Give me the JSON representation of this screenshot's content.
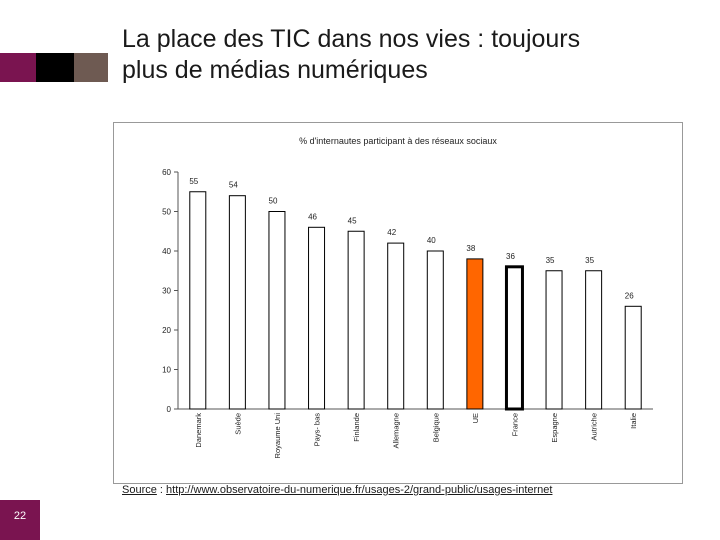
{
  "slide": {
    "title_line1": "La place des TIC dans nos vies : toujours",
    "title_line2": "plus de médias numériques",
    "source_label": "Source",
    "source_sep": " : ",
    "source_url": "http://www.observatoire-du-numerique.fr/usages-2/grand-public/usages-internet",
    "page_number": "22",
    "colors": {
      "accent": "#7a1450",
      "highlight_bar": "#ff6600"
    }
  },
  "chart_data": {
    "type": "bar",
    "title": "% d'internautes participant à des réseaux sociaux",
    "categories": [
      "Danemark",
      "Suède",
      "Royaume Uni",
      "Pays- bas",
      "Finlande",
      "Allemagne",
      "Belgique",
      "UE",
      "France",
      "Espagne",
      "Autriche",
      "Italie"
    ],
    "values": [
      55,
      54,
      50,
      46,
      45,
      42,
      40,
      38,
      36,
      35,
      35,
      26
    ],
    "value_labels": [
      "55",
      "54",
      "50",
      "46",
      "45",
      "42",
      "40",
      "38",
      "36",
      "35",
      "35",
      "26"
    ],
    "ylim": [
      0,
      60
    ],
    "yticks": [
      0,
      10,
      20,
      30,
      40,
      50,
      60
    ],
    "ytick_labels": [
      "0",
      "10",
      "20",
      "30",
      "40",
      "50",
      "60"
    ],
    "xlabel": "",
    "ylabel": "",
    "highlight": {
      "UE": "orange",
      "France": "bold-outline"
    },
    "grid": false,
    "legend": "none"
  }
}
